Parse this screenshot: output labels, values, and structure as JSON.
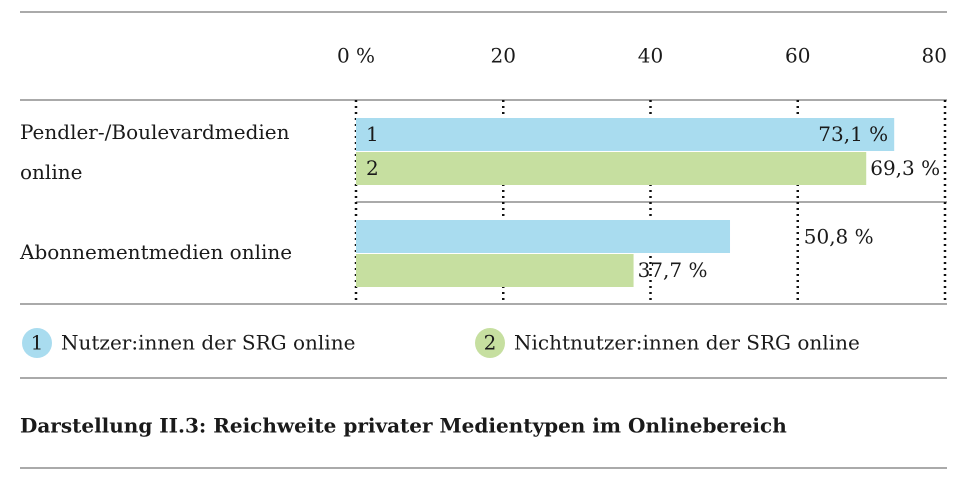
{
  "chart_data": {
    "type": "hbar",
    "title": "Darstellung II.3: Reichweite privater Medientypen im Onlinebereich",
    "categories": [
      "Pendler-/Boulevardmedien online",
      "Abonnementmedien online"
    ],
    "series": [
      {
        "key": "1",
        "name": "Nutzer:innen der SRG online",
        "color": "#a9dcef",
        "values": [
          73.1,
          50.8
        ],
        "value_labels": [
          "73,1 %",
          "50,8 %"
        ]
      },
      {
        "key": "2",
        "name": "Nichtnutzer:innen der SRG online",
        "color": "#c6dfa0",
        "values": [
          69.3,
          37.7
        ],
        "value_labels": [
          "69,3 %",
          "37,7 %"
        ]
      }
    ],
    "xlim": [
      0,
      80
    ],
    "xticks": [
      {
        "value": 0,
        "label": "0 %"
      },
      20,
      40,
      60,
      80
    ],
    "grid": true
  }
}
